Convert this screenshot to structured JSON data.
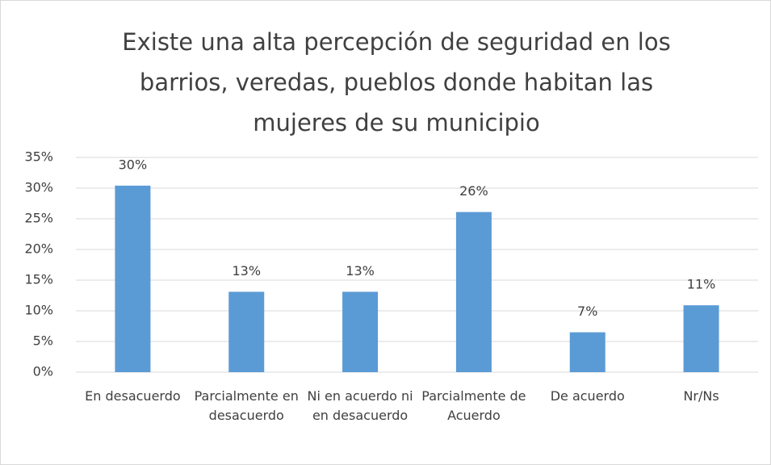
{
  "chart_data": {
    "type": "bar",
    "title": "Existe una alta percepción de seguridad en los barrios, veredas, pueblos donde habitan las mujeres de su municipio",
    "categories": [
      "En desacuerdo",
      "Parcialmente en desacuerdo",
      "Ni en acuerdo ni en desacuerdo",
      "Parcialmente de Acuerdo",
      "De acuerdo",
      "Nr/Ns"
    ],
    "values": [
      30.4,
      13.1,
      13.1,
      26.1,
      6.5,
      10.9
    ],
    "value_labels": [
      "30%",
      "13%",
      "13%",
      "26%",
      "7%",
      "11%"
    ],
    "color": "#5b9bd5",
    "ylim": [
      0,
      35
    ],
    "yticks": [
      {
        "value": 0,
        "label": "0%"
      },
      {
        "value": 5,
        "label": "5%"
      },
      {
        "value": 10,
        "label": "10%"
      },
      {
        "value": 15,
        "label": "15%"
      },
      {
        "value": 20,
        "label": "20%"
      },
      {
        "value": 25,
        "label": "25%"
      },
      {
        "value": 30,
        "label": "30%"
      },
      {
        "value": 35,
        "label": "35%"
      }
    ],
    "grid": true
  }
}
